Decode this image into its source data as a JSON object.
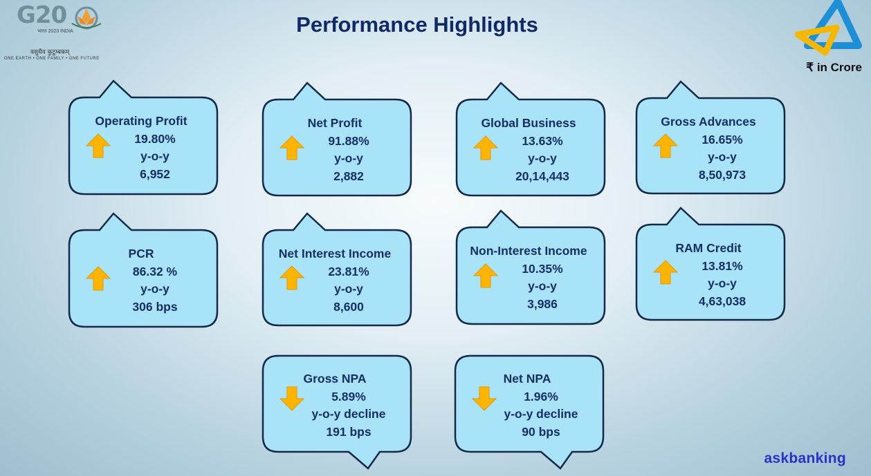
{
  "header": {
    "title": "Performance Highlights",
    "unit": "₹ in Crore",
    "logo_g20_text": "G20",
    "logo_g20_sub": "भारत 2023 INDIA",
    "logo_g20_hindi": "वसुधैव कुटुम्बकम्",
    "logo_g20_tagline": "ONE EARTH • ONE FAMILY • ONE FUTURE"
  },
  "colors": {
    "title": "#0f2a66",
    "box_fill": "#a9e3f7",
    "box_border": "#14284a",
    "arrow": "#ffb400",
    "watermark": "#2a31c9",
    "brand_blue": "#1c8fd6",
    "brand_yellow": "#f6b700"
  },
  "metrics": [
    {
      "title": "Operating Profit",
      "value": "19.80%",
      "label": "y-o-y",
      "amount": "6,952",
      "trend": "up"
    },
    {
      "title": "Net Profit",
      "value": "91.88%",
      "label": "y-o-y",
      "amount": "2,882",
      "trend": "up"
    },
    {
      "title": "Global Business",
      "value": "13.63%",
      "label": "y-o-y",
      "amount": "20,14,443",
      "trend": "up"
    },
    {
      "title": "Gross Advances",
      "value": "16.65%",
      "label": "y-o-y",
      "amount": "8,50,973",
      "trend": "up"
    },
    {
      "title": "PCR",
      "value": "86.32 %",
      "label": "y-o-y",
      "amount": "306 bps",
      "trend": "up"
    },
    {
      "title": "Net Interest Income",
      "value": "23.81%",
      "label": "y-o-y",
      "amount": "8,600",
      "trend": "up"
    },
    {
      "title": "Non-Interest Income",
      "value": "10.35%",
      "label": "y-o-y",
      "amount": "3,986",
      "trend": "up"
    },
    {
      "title": "RAM Credit",
      "value": "13.81%",
      "label": "y-o-y",
      "amount": "4,63,038",
      "trend": "up"
    },
    {
      "title": "Gross NPA",
      "value": "5.89%",
      "label": "y-o-y decline",
      "amount": "191 bps",
      "trend": "down"
    },
    {
      "title": "Net NPA",
      "value": "1.96%",
      "label": "y-o-y decline",
      "amount": "90 bps",
      "trend": "down"
    }
  ],
  "footer": {
    "watermark": "askbanking"
  }
}
